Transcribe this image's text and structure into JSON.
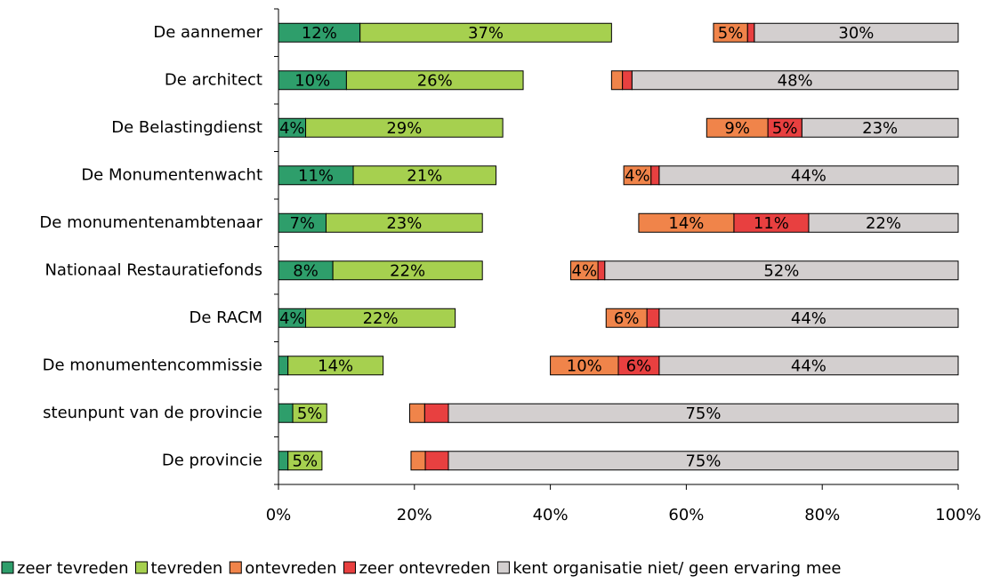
{
  "chart_data": {
    "type": "stacked-bar-horizontal",
    "categories": [
      "De aannemer",
      "De architect",
      "De Belastingdienst",
      "De Monumentenwacht",
      "De monumentenambtenaar",
      "Nationaal Restauratiefonds",
      "De RACM",
      "De monumentencommissie",
      "steunpunt van de provincie",
      "De provincie"
    ],
    "series": [
      {
        "name": "zeer tevreden",
        "color": "#2e9e6b",
        "values": [
          12,
          10,
          4,
          11,
          7,
          8,
          4,
          1.4,
          2.1,
          1.4
        ],
        "value_labels": [
          "12%",
          "10%",
          "4%",
          "11%",
          "7%",
          "8%",
          "4%",
          null,
          null,
          null
        ]
      },
      {
        "name": "tevreden",
        "color": "#a6d04f",
        "values": [
          37,
          26,
          29,
          21,
          23,
          22,
          22,
          14,
          5,
          5
        ],
        "value_labels": [
          "37%",
          "26%",
          "29%",
          "21%",
          "23%",
          "22%",
          "22%",
          "14%",
          "5%",
          "5%"
        ]
      },
      {
        "name": "ontevreden",
        "color": "#f0844a",
        "values": [
          5,
          1.6,
          9,
          4,
          14,
          4,
          6,
          10,
          2.2,
          2.1
        ],
        "value_labels": [
          "5%",
          null,
          "9%",
          "4%",
          "14%",
          "4%",
          "6%",
          "10%",
          null,
          null
        ]
      },
      {
        "name": "zeer ontevreden",
        "color": "#e84040",
        "values": [
          1,
          1.4,
          5,
          1.2,
          11,
          1,
          1.8,
          6,
          3.5,
          3.4
        ],
        "value_labels": [
          null,
          null,
          "5%",
          null,
          "11%",
          null,
          null,
          "6%",
          null,
          null
        ]
      },
      {
        "name": "kent organisatie niet/ geen ervaring mee",
        "color": "#d3cfcf",
        "values": [
          30,
          48,
          23,
          44,
          22,
          52,
          44,
          44,
          75,
          75
        ],
        "value_labels": [
          "30%",
          "48%",
          "23%",
          "44%",
          "22%",
          "52%",
          "44%",
          "44%",
          "75%",
          "75%"
        ]
      }
    ],
    "xlim": [
      0,
      100
    ],
    "xticks": [
      {
        "value": 0,
        "label": "0%"
      },
      {
        "value": 20,
        "label": "20%"
      },
      {
        "value": 40,
        "label": "40%"
      },
      {
        "value": 60,
        "label": "60%"
      },
      {
        "value": 80,
        "label": "80%"
      },
      {
        "value": 100,
        "label": "100%"
      }
    ]
  }
}
